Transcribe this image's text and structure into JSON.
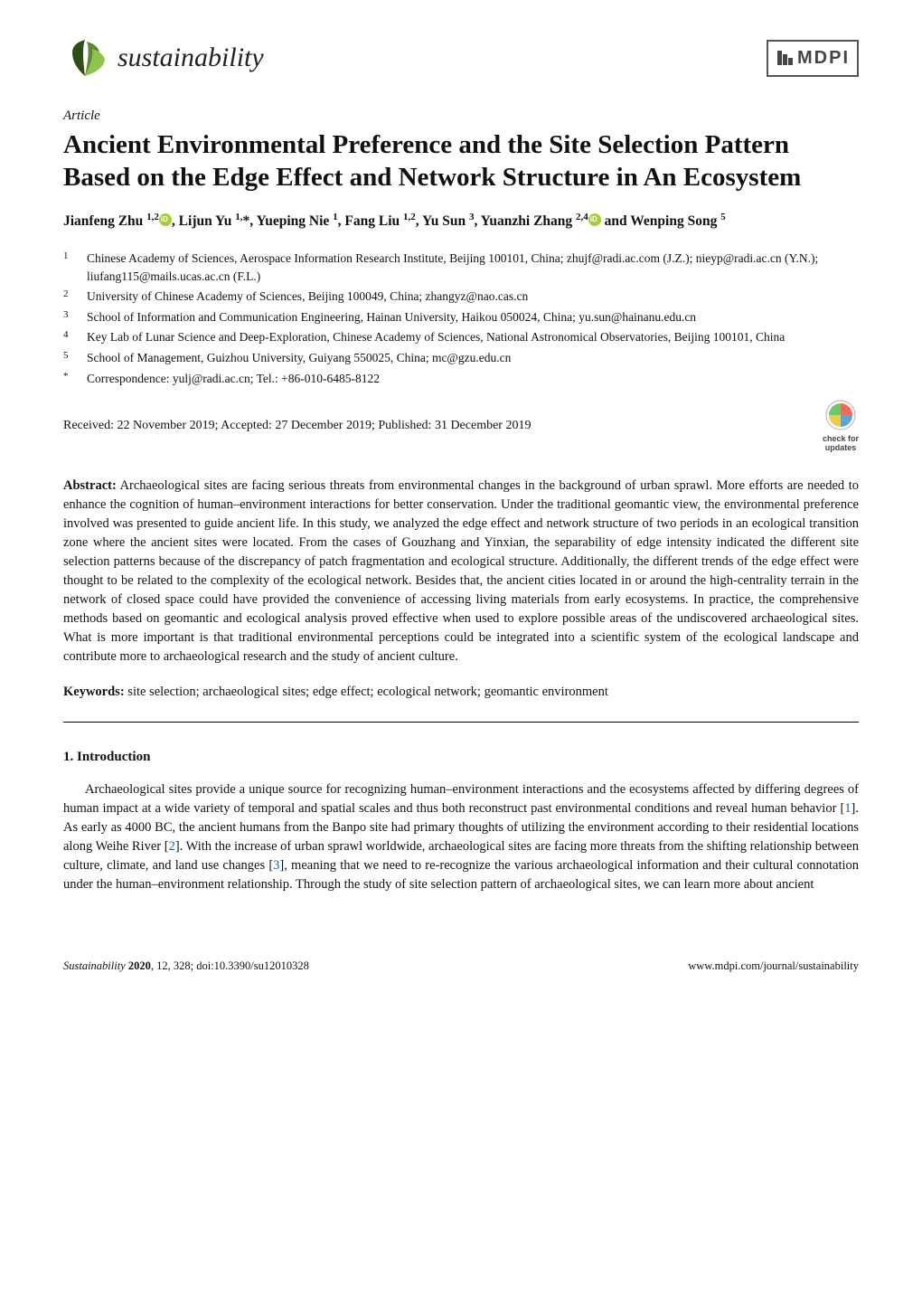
{
  "journal": {
    "name": "sustainability",
    "publisher": "MDPI"
  },
  "article_type": "Article",
  "title": "Ancient Environmental Preference and the Site Selection Pattern Based on the Edge Effect and Network Structure in An Ecosystem",
  "authors_html": "Jianfeng Zhu <sup>1,2</sup><span class='orcid'></span>, Lijun Yu <sup>1,</sup>*, Yueping Nie <sup>1</sup>, Fang Liu <sup>1,2</sup>, Yu Sun <sup>3</sup>, Yuanzhi Zhang <sup>2,4</sup><span class='orcid'></span> and Wenping Song <sup>5</sup>",
  "affiliations": [
    {
      "num": "1",
      "text": "Chinese Academy of Sciences, Aerospace Information Research Institute, Beijing 100101, China; zhujf@radi.ac.com (J.Z.); nieyp@radi.ac.cn (Y.N.); liufang115@mails.ucas.ac.cn (F.L.)"
    },
    {
      "num": "2",
      "text": "University of Chinese Academy of Sciences, Beijing 100049, China; zhangyz@nao.cas.cn"
    },
    {
      "num": "3",
      "text": "School of Information and Communication Engineering, Hainan University, Haikou 050024, China; yu.sun@hainanu.edu.cn"
    },
    {
      "num": "4",
      "text": "Key Lab of Lunar Science and Deep-Exploration, Chinese Academy of Sciences, National Astronomical Observatories, Beijing 100101, China"
    },
    {
      "num": "5",
      "text": "School of Management, Guizhou University, Guiyang 550025, China; mc@gzu.edu.cn"
    },
    {
      "num": "*",
      "text": "Correspondence: yulj@radi.ac.cn; Tel.: +86-010-6485-8122"
    }
  ],
  "dates": "Received: 22 November 2019; Accepted: 27 December 2019; Published: 31 December 2019",
  "check_updates": {
    "line1": "check for",
    "line2": "updates"
  },
  "abstract_label": "Abstract:",
  "abstract": " Archaeological sites are facing serious threats from environmental changes in the background of urban sprawl. More efforts are needed to enhance the cognition of human–environment interactions for better conservation. Under the traditional geomantic view, the environmental preference involved was presented to guide ancient life. In this study, we analyzed the edge effect and network structure of two periods in an ecological transition zone where the ancient sites were located. From the cases of Gouzhang and Yinxian, the separability of edge intensity indicated the different site selection patterns because of the discrepancy of patch fragmentation and ecological structure. Additionally, the different trends of the edge effect were thought to be related to the complexity of the ecological network. Besides that, the ancient cities located in or around the high-centrality terrain in the network of closed space could have provided the convenience of accessing living materials from early ecosystems. In practice, the comprehensive methods based on geomantic and ecological analysis proved effective when used to explore possible areas of the undiscovered archaeological sites. What is more important is that traditional environmental perceptions could be integrated into a scientific system of the ecological landscape and contribute more to archaeological research and the study of ancient culture.",
  "keywords_label": "Keywords:",
  "keywords": " site selection; archaeological sites; edge effect; ecological network; geomantic environment",
  "section1_heading": "1. Introduction",
  "body_p1_pre": "Archaeological sites provide a unique source for recognizing human–environment interactions and the ecosystems affected by differing degrees of human impact at a wide variety of temporal and spatial scales and thus both reconstruct past environmental conditions and reveal human behavior [",
  "ref1": "1",
  "body_p1_mid1": "]. As early as 4000 BC, the ancient humans from the Banpo site had primary thoughts of utilizing the environment according to their residential locations along Weihe River [",
  "ref2": "2",
  "body_p1_mid2": "]. With the increase of urban sprawl worldwide, archaeological sites are facing more threats from the shifting relationship between culture, climate, and land use changes [",
  "ref3": "3",
  "body_p1_post": "], meaning that we need to re-recognize the various archaeological information and their cultural connotation under the human–environment relationship. Through the study of site selection pattern of archaeological sites, we can learn more about ancient",
  "footer": {
    "left_italic": "Sustainability ",
    "left_bold": "2020",
    "left_rest": ", 12, 328; doi:10.3390/su12010328",
    "right": "www.mdpi.com/journal/sustainability"
  },
  "colors": {
    "leaf_dark": "#2d5016",
    "leaf_mid": "#5a8a2f",
    "leaf_light": "#8fc44a",
    "mdpi_border": "#555555",
    "check_outer": "#b0b0b0",
    "check_q1": "#e74c3c",
    "check_q2": "#3498db",
    "check_q3": "#f1c40f",
    "check_q4": "#2ecc71",
    "link": "#0066cc"
  }
}
